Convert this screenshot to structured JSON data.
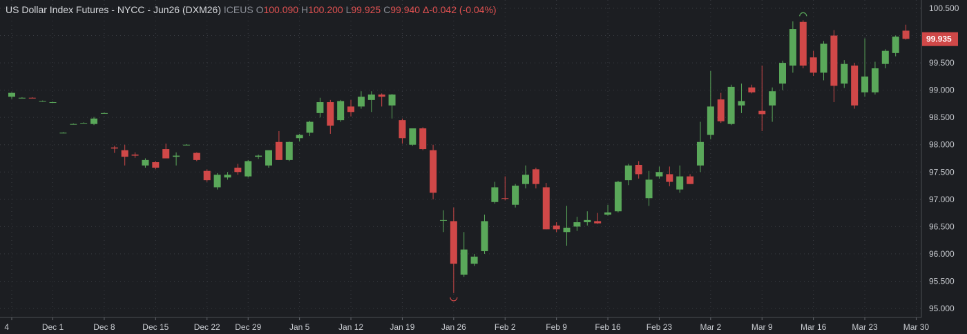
{
  "header": {
    "title": "US Dollar Index Futures - NYCC - Jun26 (DXM26)",
    "exchange": "ICEUS",
    "open_label": "O",
    "open": "100.090",
    "high_label": "H",
    "high": "100.200",
    "low_label": "L",
    "low": "99.925",
    "close_label": "C",
    "close": "99.940",
    "change": "Δ-0.042 (-0.04%)"
  },
  "colors": {
    "up": "#5aa85a",
    "down": "#d04848",
    "background": "#1c1e22",
    "grid": "#3a3d43"
  },
  "price_tag": "99.935",
  "chart_data": {
    "type": "candlestick",
    "title": "US Dollar Index Futures - NYCC - Jun26 (DXM26)",
    "ylim": [
      94.9,
      100.62
    ],
    "y_ticks": [
      95.0,
      95.5,
      96.0,
      96.5,
      97.0,
      97.5,
      98.0,
      98.5,
      99.0,
      99.5,
      100.0,
      100.5
    ],
    "y_tick_labels": [
      "95.000",
      "95.500",
      "96.000",
      "96.500",
      "97.000",
      "97.500",
      "98.000",
      "98.500",
      "99.000",
      "99.500",
      "",
      "100.500"
    ],
    "x_labels": [
      "4",
      "Dec 1",
      "Dec 8",
      "Dec 15",
      "Dec 22",
      "Dec 29",
      "Jan 5",
      "Jan 12",
      "Jan 19",
      "Jan 26",
      "Feb 2",
      "Feb 9",
      "Feb 16",
      "Feb 23",
      "Mar 2",
      "Mar 9",
      "Mar 16",
      "Mar 23",
      "Mar 30"
    ],
    "x_label_index": [
      0,
      4,
      9,
      14,
      19,
      23,
      28,
      33,
      38,
      43,
      48,
      53,
      58,
      63,
      68,
      73,
      78,
      83,
      88
    ],
    "grid": true,
    "legend": "none",
    "candles": [
      {
        "o": 98.88,
        "h": 98.96,
        "l": 98.84,
        "c": 98.95
      },
      {
        "o": 98.86,
        "h": 98.87,
        "l": 98.85,
        "c": 98.86
      },
      {
        "o": 98.86,
        "h": 98.87,
        "l": 98.85,
        "c": 98.85
      },
      {
        "o": 98.8,
        "h": 98.81,
        "l": 98.79,
        "c": 98.8
      },
      {
        "o": 98.78,
        "h": 98.79,
        "l": 98.77,
        "c": 98.78
      },
      {
        "o": 98.22,
        "h": 98.23,
        "l": 98.21,
        "c": 98.22
      },
      {
        "o": 98.38,
        "h": 98.39,
        "l": 98.37,
        "c": 98.38
      },
      {
        "o": 98.4,
        "h": 98.41,
        "l": 98.39,
        "c": 98.4
      },
      {
        "o": 98.38,
        "h": 98.51,
        "l": 98.36,
        "c": 98.48
      },
      {
        "o": 98.58,
        "h": 98.59,
        "l": 98.57,
        "c": 98.58
      },
      {
        "o": 97.95,
        "h": 97.98,
        "l": 97.85,
        "c": 97.93
      },
      {
        "o": 97.9,
        "h": 98.0,
        "l": 97.62,
        "c": 97.78
      },
      {
        "o": 97.82,
        "h": 97.86,
        "l": 97.76,
        "c": 97.8
      },
      {
        "o": 97.62,
        "h": 97.75,
        "l": 97.58,
        "c": 97.72
      },
      {
        "o": 97.68,
        "h": 97.7,
        "l": 97.55,
        "c": 97.58
      },
      {
        "o": 97.92,
        "h": 98.02,
        "l": 97.78,
        "c": 97.75
      },
      {
        "o": 97.78,
        "h": 97.86,
        "l": 97.62,
        "c": 97.8
      },
      {
        "o": 98.0,
        "h": 98.01,
        "l": 97.99,
        "c": 98.0
      },
      {
        "o": 97.85,
        "h": 97.86,
        "l": 97.7,
        "c": 97.72
      },
      {
        "o": 97.52,
        "h": 97.55,
        "l": 97.32,
        "c": 97.35
      },
      {
        "o": 97.22,
        "h": 97.48,
        "l": 97.18,
        "c": 97.45
      },
      {
        "o": 97.4,
        "h": 97.5,
        "l": 97.36,
        "c": 97.45
      },
      {
        "o": 97.58,
        "h": 97.65,
        "l": 97.45,
        "c": 97.5
      },
      {
        "o": 97.42,
        "h": 97.72,
        "l": 97.4,
        "c": 97.7
      },
      {
        "o": 97.78,
        "h": 97.82,
        "l": 97.74,
        "c": 97.8
      },
      {
        "o": 97.62,
        "h": 97.86,
        "l": 97.58,
        "c": 97.9
      },
      {
        "o": 98.05,
        "h": 98.25,
        "l": 97.72,
        "c": 97.72
      },
      {
        "o": 97.72,
        "h": 98.06,
        "l": 97.7,
        "c": 98.05
      },
      {
        "o": 98.12,
        "h": 98.2,
        "l": 98.06,
        "c": 98.18
      },
      {
        "o": 98.22,
        "h": 98.44,
        "l": 98.16,
        "c": 98.42
      },
      {
        "o": 98.58,
        "h": 98.86,
        "l": 98.5,
        "c": 98.78
      },
      {
        "o": 98.78,
        "h": 98.82,
        "l": 98.2,
        "c": 98.35
      },
      {
        "o": 98.45,
        "h": 98.82,
        "l": 98.42,
        "c": 98.8
      },
      {
        "o": 98.7,
        "h": 98.82,
        "l": 98.52,
        "c": 98.6
      },
      {
        "o": 98.7,
        "h": 98.98,
        "l": 98.66,
        "c": 98.88
      },
      {
        "o": 98.82,
        "h": 98.98,
        "l": 98.6,
        "c": 98.92
      },
      {
        "o": 98.92,
        "h": 98.94,
        "l": 98.7,
        "c": 98.88
      },
      {
        "o": 98.72,
        "h": 98.93,
        "l": 98.48,
        "c": 98.92
      },
      {
        "o": 98.45,
        "h": 98.48,
        "l": 98.02,
        "c": 98.12
      },
      {
        "o": 98.0,
        "h": 98.3,
        "l": 97.98,
        "c": 98.3
      },
      {
        "o": 98.3,
        "h": 98.32,
        "l": 97.9,
        "c": 97.92
      },
      {
        "o": 97.9,
        "h": 98.0,
        "l": 97.0,
        "c": 97.12
      },
      {
        "o": 96.62,
        "h": 96.8,
        "l": 96.4,
        "c": 96.62
      },
      {
        "o": 96.6,
        "h": 96.85,
        "l": 95.28,
        "c": 95.82
      },
      {
        "o": 95.62,
        "h": 96.4,
        "l": 95.58,
        "c": 96.08
      },
      {
        "o": 95.82,
        "h": 96.0,
        "l": 95.78,
        "c": 95.95
      },
      {
        "o": 96.05,
        "h": 96.72,
        "l": 96.0,
        "c": 96.6
      },
      {
        "o": 96.95,
        "h": 97.32,
        "l": 96.92,
        "c": 97.22
      },
      {
        "o": 97.02,
        "h": 97.42,
        "l": 96.98,
        "c": 97.01
      },
      {
        "o": 96.9,
        "h": 97.28,
        "l": 96.85,
        "c": 97.25
      },
      {
        "o": 97.28,
        "h": 97.62,
        "l": 97.2,
        "c": 97.45
      },
      {
        "o": 97.55,
        "h": 97.58,
        "l": 97.2,
        "c": 97.28
      },
      {
        "o": 97.22,
        "h": 97.3,
        "l": 96.45,
        "c": 96.45
      },
      {
        "o": 96.52,
        "h": 96.58,
        "l": 96.4,
        "c": 96.45
      },
      {
        "o": 96.4,
        "h": 96.88,
        "l": 96.15,
        "c": 96.48
      },
      {
        "o": 96.5,
        "h": 96.68,
        "l": 96.42,
        "c": 96.58
      },
      {
        "o": 96.58,
        "h": 96.78,
        "l": 96.52,
        "c": 96.62
      },
      {
        "o": 96.6,
        "h": 96.75,
        "l": 96.55,
        "c": 96.56
      },
      {
        "o": 96.72,
        "h": 96.9,
        "l": 96.7,
        "c": 96.76
      },
      {
        "o": 96.78,
        "h": 97.34,
        "l": 96.76,
        "c": 97.32
      },
      {
        "o": 97.35,
        "h": 97.65,
        "l": 97.26,
        "c": 97.62
      },
      {
        "o": 97.63,
        "h": 97.7,
        "l": 97.38,
        "c": 97.46
      },
      {
        "o": 97.02,
        "h": 97.52,
        "l": 96.88,
        "c": 97.36
      },
      {
        "o": 97.42,
        "h": 97.6,
        "l": 97.38,
        "c": 97.5
      },
      {
        "o": 97.46,
        "h": 97.6,
        "l": 97.24,
        "c": 97.32
      },
      {
        "o": 97.18,
        "h": 97.62,
        "l": 97.12,
        "c": 97.42
      },
      {
        "o": 97.42,
        "h": 97.46,
        "l": 97.28,
        "c": 97.28
      },
      {
        "o": 97.62,
        "h": 98.42,
        "l": 97.5,
        "c": 98.05
      },
      {
        "o": 98.18,
        "h": 99.35,
        "l": 98.1,
        "c": 98.7
      },
      {
        "o": 98.83,
        "h": 98.95,
        "l": 98.4,
        "c": 98.43
      },
      {
        "o": 98.38,
        "h": 99.1,
        "l": 98.36,
        "c": 99.06
      },
      {
        "o": 98.72,
        "h": 99.12,
        "l": 98.58,
        "c": 98.8
      },
      {
        "o": 99.05,
        "h": 99.1,
        "l": 98.94,
        "c": 98.96
      },
      {
        "o": 98.62,
        "h": 99.45,
        "l": 98.25,
        "c": 98.56
      },
      {
        "o": 98.72,
        "h": 99.05,
        "l": 98.42,
        "c": 98.98
      },
      {
        "o": 99.12,
        "h": 99.54,
        "l": 99.0,
        "c": 99.5
      },
      {
        "o": 99.45,
        "h": 100.26,
        "l": 99.32,
        "c": 100.12
      },
      {
        "o": 100.25,
        "h": 100.28,
        "l": 99.4,
        "c": 99.45
      },
      {
        "o": 99.6,
        "h": 99.72,
        "l": 99.26,
        "c": 99.32
      },
      {
        "o": 99.32,
        "h": 99.9,
        "l": 99.18,
        "c": 99.85
      },
      {
        "o": 100.0,
        "h": 100.1,
        "l": 98.78,
        "c": 99.08
      },
      {
        "o": 99.12,
        "h": 99.55,
        "l": 99.04,
        "c": 99.48
      },
      {
        "o": 99.45,
        "h": 99.5,
        "l": 98.66,
        "c": 98.72
      },
      {
        "o": 98.96,
        "h": 99.95,
        "l": 98.88,
        "c": 99.25
      },
      {
        "o": 98.96,
        "h": 99.52,
        "l": 98.92,
        "c": 99.4
      },
      {
        "o": 99.48,
        "h": 99.75,
        "l": 99.4,
        "c": 99.72
      },
      {
        "o": 99.68,
        "h": 100.0,
        "l": 99.62,
        "c": 99.98
      },
      {
        "o": 100.09,
        "h": 100.2,
        "l": 99.925,
        "c": 99.94
      }
    ]
  }
}
